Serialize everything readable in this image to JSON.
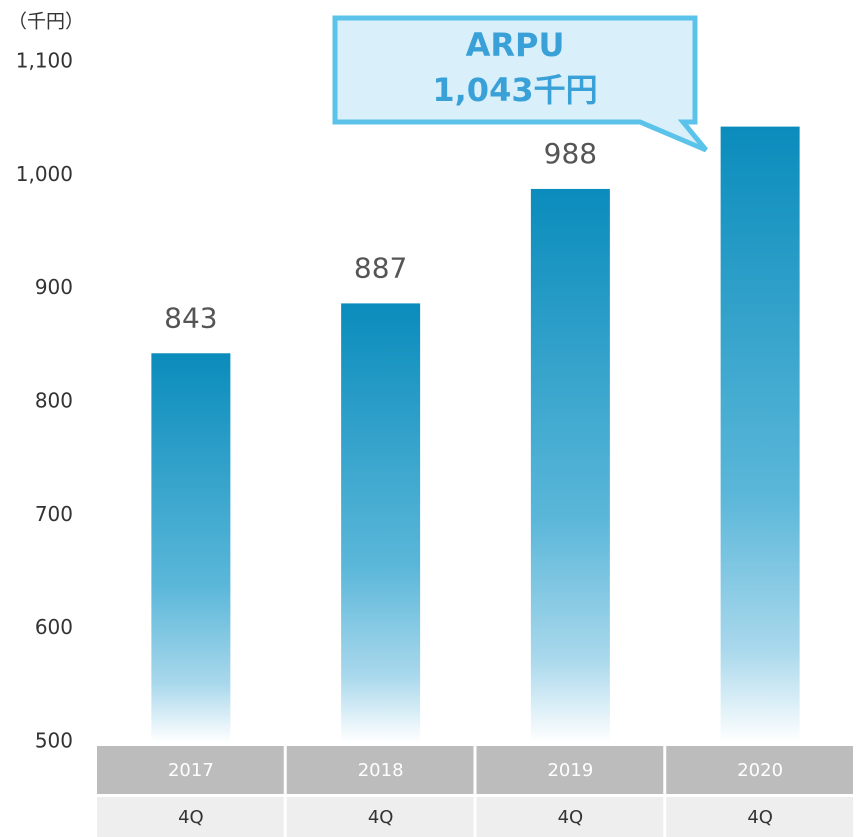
{
  "chart_data": {
    "type": "bar",
    "unit_label": "（千円）",
    "categories": [
      "2017",
      "2018",
      "2019",
      "2020"
    ],
    "sub_categories": [
      "4Q",
      "4Q",
      "4Q",
      "4Q"
    ],
    "values": [
      843,
      887,
      988,
      1043
    ],
    "value_labels": [
      "843",
      "887",
      "988",
      null
    ],
    "color": "#0a8cbc",
    "ylim": [
      500,
      1100
    ],
    "yticks": [
      500,
      600,
      700,
      800,
      900,
      {
        "value": 1000,
        "label": "1,000"
      },
      {
        "value": 1100,
        "label": "1,100"
      }
    ],
    "annotation": {
      "title": "ARPU",
      "text": "1,043千円"
    }
  }
}
